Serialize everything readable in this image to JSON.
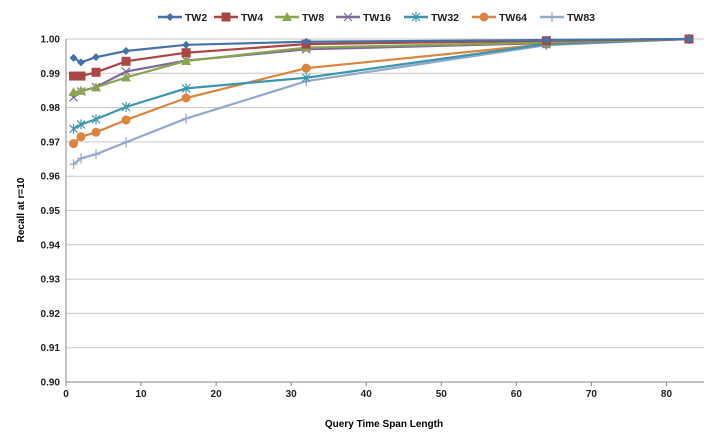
{
  "chart_data": {
    "type": "line",
    "title": "",
    "xlabel": "Query Time Span Length",
    "ylabel": "Recall at r=10",
    "xlim": [
      0,
      85
    ],
    "ylim": [
      0.9,
      1.0
    ],
    "xticks": [
      0,
      10,
      20,
      30,
      40,
      50,
      60,
      70,
      80
    ],
    "yticks": [
      0.9,
      0.91,
      0.92,
      0.93,
      0.94,
      0.95,
      0.96,
      0.97,
      0.98,
      0.99,
      1.0
    ],
    "ytick_labels": [
      "0.90",
      "0.91",
      "0.92",
      "0.93",
      "0.94",
      "0.95",
      "0.96",
      "0.97",
      "0.98",
      "0.99",
      "1.00"
    ],
    "grid": "horizontal",
    "legend_position": "top",
    "x": [
      1,
      2,
      4,
      8,
      16,
      32,
      64,
      83
    ],
    "series": [
      {
        "name": "TW2",
        "color": "#4572A7",
        "marker": "diamond",
        "values": [
          0.9945,
          0.9932,
          0.9947,
          0.9965,
          0.9983,
          0.9992,
          0.9997,
          1.0
        ]
      },
      {
        "name": "TW4",
        "color": "#AA4643",
        "marker": "square",
        "values": [
          0.9892,
          0.9892,
          0.9903,
          0.9935,
          0.996,
          0.9985,
          0.9995,
          1.0
        ]
      },
      {
        "name": "TW8",
        "color": "#89A54E",
        "marker": "triangle",
        "values": [
          0.9845,
          0.9849,
          0.9859,
          0.9888,
          0.9936,
          0.9975,
          0.999,
          1.0
        ]
      },
      {
        "name": "TW16",
        "color": "#80699B",
        "marker": "x",
        "values": [
          0.983,
          0.9847,
          0.986,
          0.9905,
          0.9937,
          0.997,
          0.9988,
          1.0
        ]
      },
      {
        "name": "TW32",
        "color": "#3D96AE",
        "marker": "star",
        "values": [
          0.9738,
          0.9751,
          0.9766,
          0.9802,
          0.9856,
          0.9887,
          0.9985,
          1.0
        ]
      },
      {
        "name": "TW64",
        "color": "#DB843D",
        "marker": "circle",
        "values": [
          0.9695,
          0.9715,
          0.9728,
          0.9764,
          0.9828,
          0.9915,
          0.9985,
          1.0
        ]
      },
      {
        "name": "TW83",
        "color": "#92A8CD",
        "marker": "plus",
        "values": [
          0.9635,
          0.9652,
          0.9664,
          0.9699,
          0.9768,
          0.9877,
          0.9982,
          1.0
        ]
      }
    ]
  }
}
